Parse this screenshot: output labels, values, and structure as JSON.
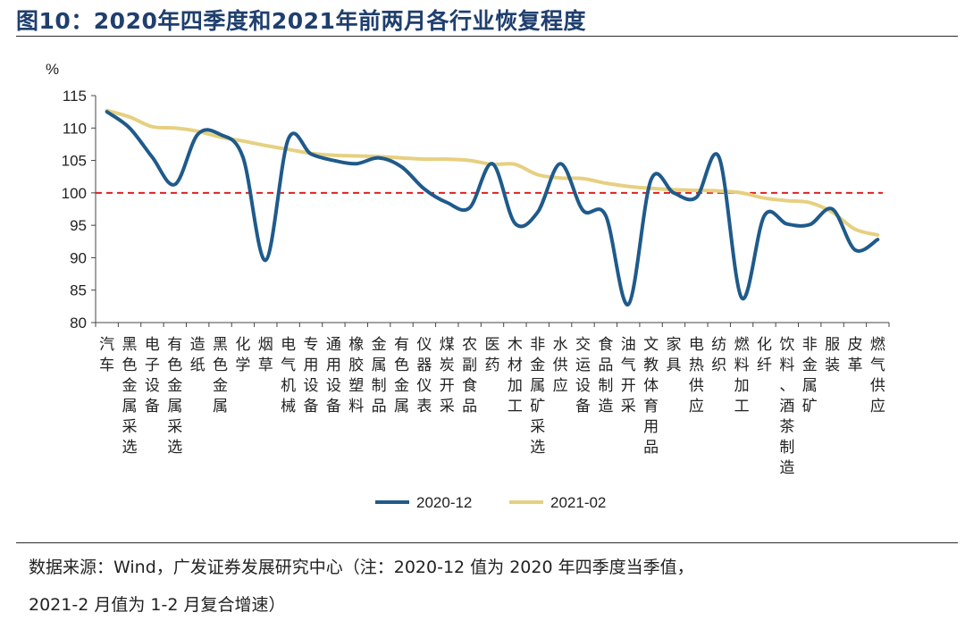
{
  "header": {
    "title": "图10：2020年四季度和2021年前两月各行业恢复程度"
  },
  "footer": {
    "line1": "数据来源：Wind，广发证券发展研究中心（注：2020-12 值为 2020 年四季度当季值，",
    "line2": "2021-2 月值为 1-2 月复合增速）"
  },
  "colors": {
    "series1": "#1f5a8b",
    "series2": "#e6d080",
    "reference": "#e02020",
    "axis": "#444444"
  },
  "chart_data": {
    "type": "line",
    "ylabel": "%",
    "ylim": [
      80,
      115
    ],
    "yticks": [
      80,
      85,
      90,
      95,
      100,
      105,
      110,
      115
    ],
    "reference_line": 100,
    "legend_position": "bottom",
    "categories": [
      "汽车",
      "黑色金属采选",
      "电子设备",
      "有色金属采选",
      "造纸",
      "黑色金属",
      "化学",
      "烟草",
      "电气机械",
      "专用设备",
      "通用设备",
      "橡胶塑料",
      "金属制品",
      "有色金属",
      "仪器仪表",
      "煤炭开采",
      "农副食品",
      "医药",
      "木材加工",
      "非金属矿采选",
      "水供应",
      "交运设备",
      "食品制造",
      "油气开采",
      "文教体育用品",
      "家具",
      "电热供应",
      "纺织",
      "燃料加工",
      "化纤",
      "饮料、酒茶制造",
      "非金属矿",
      "服装",
      "皮革",
      "燃气供应"
    ],
    "series": [
      {
        "name": "2020-12",
        "values": [
          112.5,
          110.0,
          105.5,
          101.3,
          109.0,
          109.0,
          105.5,
          89.6,
          108.3,
          106.0,
          105.0,
          104.5,
          105.4,
          104.0,
          100.6,
          98.5,
          97.7,
          104.5,
          95.3,
          97.0,
          104.5,
          97.3,
          96.5,
          82.8,
          102.0,
          100.0,
          99.3,
          105.5,
          83.8,
          96.5,
          95.2,
          95.1,
          97.5,
          91.2,
          92.8
        ]
      },
      {
        "name": "2021-02",
        "values": [
          112.7,
          111.7,
          110.2,
          110.0,
          109.5,
          108.6,
          108.0,
          107.3,
          106.7,
          106.1,
          105.8,
          105.7,
          105.6,
          105.4,
          105.2,
          105.2,
          105.0,
          104.4,
          104.4,
          102.8,
          102.3,
          102.2,
          101.5,
          101.0,
          100.7,
          100.5,
          100.4,
          100.3,
          100.0,
          99.2,
          98.8,
          98.5,
          97.0,
          94.4,
          93.5
        ]
      }
    ]
  }
}
